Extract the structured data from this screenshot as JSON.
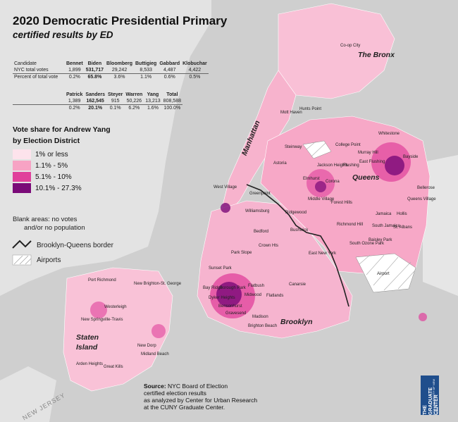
{
  "title": "2020 Democratic Presidential Primary",
  "subtitle": "certified results by ED",
  "results": {
    "row_labels": [
      "Candidate",
      "NYC total votes",
      "Percent of total vote"
    ],
    "top": {
      "candidates": [
        "Bennet",
        "Biden",
        "Bloomberg",
        "Buttigieg",
        "Gabbard",
        "Klobuchar"
      ],
      "votes": [
        "1,899",
        "531,717",
        "29,242",
        "8,533",
        "4,487",
        "4,422"
      ],
      "percents": [
        "0.2%",
        "65.8%",
        "3.6%",
        "1.1%",
        "0.6%",
        "0.5%"
      ]
    },
    "bottom": {
      "candidates": [
        "Patrick",
        "Sanders",
        "Steyer",
        "Warren",
        "Yang",
        "Total"
      ],
      "votes": [
        "1,389",
        "162,545",
        "915",
        "50,226",
        "13,213",
        "808,588"
      ],
      "percents": [
        "0.2%",
        "20.1%",
        "0.1%",
        "6.2%",
        "1.6%",
        "100.0%"
      ]
    }
  },
  "legend": {
    "title_line1": "Vote share for Andrew Yang",
    "title_line2": "by Election District",
    "items": [
      {
        "label": "1% or less",
        "color": "#fde3ec"
      },
      {
        "label": "1.1% - 5%",
        "color": "#f7a3c4"
      },
      {
        "label": "5.1% - 10%",
        "color": "#e0409b"
      },
      {
        "label": "10.1% - 27.3%",
        "color": "#7a0a78"
      }
    ],
    "blank_note_line1": "Blank areas: no votes",
    "blank_note_line2": "and/or no population",
    "border_label": "Brooklyn-Queens border",
    "airports_label": "Airports"
  },
  "boroughs": [
    "The Bronx",
    "Manhattan",
    "Queens",
    "Brooklyn",
    "Staten",
    "Island"
  ],
  "neighborhoods": [
    "Co-op City",
    "Hunts Point",
    "Mott Haven",
    "Whitestone",
    "College Point",
    "Murray Hill",
    "East Flushing",
    "Flushing",
    "Bayside",
    "Astoria",
    "Steinway",
    "Jackson Heights",
    "Elmhurst",
    "Corona",
    "Middle Village",
    "Forest Hills",
    "Ridgewood",
    "Richmond Hill",
    "Jamaica",
    "Hollis",
    "South Jamaica",
    "St. Albans",
    "Queens Village",
    "Bellerose",
    "Greenpoint",
    "Williamsburg",
    "Bedford",
    "Crown Hts",
    "Bushwick",
    "East New York",
    "Canarsie",
    "Flatbush",
    "Midwood",
    "Flatlands",
    "Borough Park",
    "Bay Ridge",
    "Gravesend",
    "Dyker Heights",
    "Bensonhurst",
    "Madison",
    "Brighton Beach",
    "Sunset Park",
    "Park Slope",
    "West Village",
    "Baisley Park",
    "South Ozone Park",
    "Airport",
    "Westerleigh",
    "New Springville-Travis",
    "New Dorp",
    "Great Kills",
    "Arden Heights",
    "Midland Beach",
    "Port Richmond",
    "New Brighton-St. George"
  ],
  "water": [
    "NEW JERSEY"
  ],
  "source": {
    "heading": "Source:",
    "line1": "NYC Board of Election",
    "line2": "certified election results",
    "line3": "as analyzed by Center for Urban Research",
    "line4": "at the CUNY Graduate Center."
  },
  "logo_text": "THE GRADUATE CENTER",
  "logo_sub": "CITY UNIVERSITY OF NEW YORK",
  "colors": {
    "water": "#cfcfcf",
    "land_outside": "#e6e6e6",
    "c1": "#fde3ec",
    "c2": "#f7a3c4",
    "c3": "#e0409b",
    "c4": "#7a0a78",
    "border_line": "#222222"
  }
}
